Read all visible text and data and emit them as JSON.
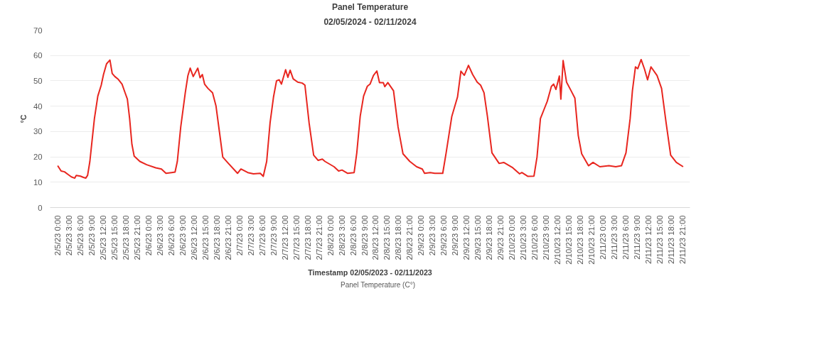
{
  "chart_data": {
    "type": "line",
    "title": "Panel Temperature",
    "subtitle": "02/05/2024 - 02/11/2024",
    "xlabel": "Timestamp 02/05/2023 - 02/11/2023",
    "ylabel": "°C",
    "x": [
      "2023-02-05T00:00",
      "2023-02-05T00:54",
      "2023-02-05T01:48",
      "2023-02-05T02:42",
      "2023-02-05T03:36",
      "2023-02-05T04:30",
      "2023-02-05T04:54",
      "2023-02-05T06:00",
      "2023-02-05T06:48",
      "2023-02-05T07:24",
      "2023-02-05T07:54",
      "2023-02-05T08:30",
      "2023-02-05T09:06",
      "2023-02-05T09:42",
      "2023-02-05T10:36",
      "2023-02-05T11:30",
      "2023-02-05T12:06",
      "2023-02-05T12:54",
      "2023-02-05T13:48",
      "2023-02-05T14:24",
      "2023-02-05T15:06",
      "2023-02-05T16:00",
      "2023-02-05T17:00",
      "2023-02-05T17:48",
      "2023-02-05T18:24",
      "2023-02-05T19:00",
      "2023-02-05T19:36",
      "2023-02-05T20:12",
      "2023-02-05T21:42",
      "2023-02-05T23:30",
      "2023-02-06T01:54",
      "2023-02-06T03:24",
      "2023-02-06T04:36",
      "2023-02-06T06:06",
      "2023-02-06T07:00",
      "2023-02-06T07:36",
      "2023-02-06T08:30",
      "2023-02-06T09:42",
      "2023-02-06T10:24",
      "2023-02-06T11:00",
      "2023-02-06T11:48",
      "2023-02-06T13:00",
      "2023-02-06T13:36",
      "2023-02-06T14:12",
      "2023-02-06T14:48",
      "2023-02-06T15:42",
      "2023-02-06T16:54",
      "2023-02-06T17:48",
      "2023-02-06T18:42",
      "2023-02-06T19:36",
      "2023-02-06T21:06",
      "2023-02-06T23:30",
      "2023-02-07T00:24",
      "2023-02-07T02:12",
      "2023-02-07T03:42",
      "2023-02-07T05:30",
      "2023-02-07T06:18",
      "2023-02-07T07:12",
      "2023-02-07T08:06",
      "2023-02-07T09:00",
      "2023-02-07T09:48",
      "2023-02-07T10:30",
      "2023-02-07T11:06",
      "2023-02-07T12:12",
      "2023-02-07T12:48",
      "2023-02-07T13:24",
      "2023-02-07T14:12",
      "2023-02-07T15:24",
      "2023-02-07T16:36",
      "2023-02-07T17:18",
      "2023-02-07T18:24",
      "2023-02-07T19:36",
      "2023-02-07T20:48",
      "2023-02-07T21:54",
      "2023-02-07T22:36",
      "2023-02-08T01:00",
      "2023-02-08T02:12",
      "2023-02-08T03:06",
      "2023-02-08T04:36",
      "2023-02-08T06:18",
      "2023-02-08T07:00",
      "2023-02-08T07:54",
      "2023-02-08T08:48",
      "2023-02-08T09:48",
      "2023-02-08T10:30",
      "2023-02-08T11:24",
      "2023-02-08T12:18",
      "2023-02-08T13:00",
      "2023-02-08T14:00",
      "2023-02-08T14:24",
      "2023-02-08T15:12",
      "2023-02-08T16:42",
      "2023-02-08T17:54",
      "2023-02-08T19:12",
      "2023-02-08T21:00",
      "2023-02-08T22:48",
      "2023-02-09T00:18",
      "2023-02-09T00:54",
      "2023-02-09T02:24",
      "2023-02-09T03:36",
      "2023-02-09T05:42",
      "2023-02-09T06:36",
      "2023-02-09T08:06",
      "2023-02-09T09:36",
      "2023-02-09T10:30",
      "2023-02-09T11:24",
      "2023-02-09T12:30",
      "2023-02-09T13:36",
      "2023-02-09T14:48",
      "2023-02-09T15:42",
      "2023-02-09T16:36",
      "2023-02-09T17:30",
      "2023-02-09T18:42",
      "2023-02-09T20:36",
      "2023-02-09T21:48",
      "2023-02-10T00:12",
      "2023-02-10T02:00",
      "2023-02-10T02:36",
      "2023-02-10T04:12",
      "2023-02-10T05:48",
      "2023-02-10T06:36",
      "2023-02-10T07:30",
      "2023-02-10T08:24",
      "2023-02-10T09:18",
      "2023-02-10T10:24",
      "2023-02-10T11:00",
      "2023-02-10T11:36",
      "2023-02-10T12:30",
      "2023-02-10T12:54",
      "2023-02-10T13:30",
      "2023-02-10T14:24",
      "2023-02-10T15:36",
      "2023-02-10T16:36",
      "2023-02-10T17:30",
      "2023-02-10T18:24",
      "2023-02-10T20:12",
      "2023-02-10T21:24",
      "2023-02-10T23:12",
      "2023-02-11T01:36",
      "2023-02-11T03:24",
      "2023-02-11T04:54",
      "2023-02-11T06:06",
      "2023-02-11T07:12",
      "2023-02-11T07:48",
      "2023-02-11T08:36",
      "2023-02-11T09:12",
      "2023-02-11T10:06",
      "2023-02-11T11:00",
      "2023-02-11T11:48",
      "2023-02-11T12:42",
      "2023-02-11T14:18",
      "2023-02-11T15:30",
      "2023-02-11T16:42",
      "2023-02-11T17:54",
      "2023-02-11T19:24",
      "2023-02-11T21:12"
    ],
    "series": [
      {
        "name": "Panel Temperature (C°)",
        "color": "#e8261f",
        "values": [
          16.5,
          14.4,
          14.1,
          13.1,
          12.1,
          11.6,
          12.7,
          12.4,
          11.9,
          11.6,
          12.7,
          18.2,
          26.7,
          35.1,
          44,
          48.3,
          52.5,
          56.7,
          58.2,
          52.9,
          51.7,
          50.6,
          48.7,
          45.3,
          42.8,
          35.1,
          25,
          20.3,
          18.2,
          16.9,
          15.7,
          15.2,
          13.5,
          13.8,
          14,
          18.2,
          31.8,
          45.3,
          52.1,
          55,
          51.7,
          55,
          51.2,
          52.5,
          48.7,
          47,
          45.3,
          40.2,
          30.1,
          19.9,
          17.4,
          13.5,
          15.2,
          13.8,
          13.3,
          13.5,
          12.3,
          18.2,
          33.5,
          43.6,
          50,
          50.4,
          48.7,
          54.4,
          51.4,
          54.2,
          50.8,
          49.5,
          49.1,
          48.3,
          33.4,
          20.7,
          18.6,
          19.1,
          18.2,
          16.1,
          14.4,
          14.8,
          13.5,
          13.8,
          21.6,
          36,
          44,
          47.9,
          48.7,
          52.1,
          53.9,
          49.3,
          49.3,
          47.7,
          49.3,
          46.1,
          31.8,
          21.2,
          18.2,
          16.1,
          15.2,
          13.5,
          13.8,
          13.5,
          13.5,
          21.6,
          36,
          43.6,
          53.8,
          52.2,
          56.1,
          52.5,
          49.5,
          48.3,
          45.3,
          36,
          21.6,
          17.4,
          17.8,
          15.7,
          13.3,
          13.8,
          12.3,
          12.4,
          19.9,
          35.1,
          38.5,
          41.9,
          47.8,
          48.7,
          46.6,
          51.9,
          42.8,
          58,
          49.5,
          46.1,
          43.2,
          28.4,
          21.2,
          16.5,
          17.8,
          16.1,
          16.5,
          16.1,
          16.5,
          21.6,
          35.1,
          46.1,
          55.5,
          54.8,
          58.4,
          54.6,
          50.4,
          55.5,
          52.1,
          47,
          33.4,
          20.7,
          17.8,
          16.1
        ]
      }
    ],
    "xlim": [
      "2023-02-04T22:00",
      "2023-02-11T23:00"
    ],
    "xticks": [
      {
        "value": "2023-02-05T00:00",
        "label": "2/5/23 0:00"
      },
      {
        "value": "2023-02-05T03:00",
        "label": "2/5/23 3:00"
      },
      {
        "value": "2023-02-05T06:00",
        "label": "2/5/23 6:00"
      },
      {
        "value": "2023-02-05T09:00",
        "label": "2/5/23 9:00"
      },
      {
        "value": "2023-02-05T12:00",
        "label": "2/5/23 12:00"
      },
      {
        "value": "2023-02-05T15:00",
        "label": "2/5/23 15:00"
      },
      {
        "value": "2023-02-05T18:00",
        "label": "2/5/23 18:00"
      },
      {
        "value": "2023-02-05T21:00",
        "label": "2/5/23 21:00"
      },
      {
        "value": "2023-02-06T00:00",
        "label": "2/6/23 0:00"
      },
      {
        "value": "2023-02-06T03:00",
        "label": "2/6/23 3:00"
      },
      {
        "value": "2023-02-06T06:00",
        "label": "2/6/23 6:00"
      },
      {
        "value": "2023-02-06T09:00",
        "label": "2/6/23 9:00"
      },
      {
        "value": "2023-02-06T12:00",
        "label": "2/6/23 12:00"
      },
      {
        "value": "2023-02-06T15:00",
        "label": "2/6/23 15:00"
      },
      {
        "value": "2023-02-06T18:00",
        "label": "2/6/23 18:00"
      },
      {
        "value": "2023-02-06T21:00",
        "label": "2/6/23 21:00"
      },
      {
        "value": "2023-02-07T00:00",
        "label": "2/7/23 0:00"
      },
      {
        "value": "2023-02-07T03:00",
        "label": "2/7/23 3:00"
      },
      {
        "value": "2023-02-07T06:00",
        "label": "2/7/23 6:00"
      },
      {
        "value": "2023-02-07T09:00",
        "label": "2/7/23 9:00"
      },
      {
        "value": "2023-02-07T12:00",
        "label": "2/7/23 12:00"
      },
      {
        "value": "2023-02-07T15:00",
        "label": "2/7/23 15:00"
      },
      {
        "value": "2023-02-07T18:00",
        "label": "2/7/23 18:00"
      },
      {
        "value": "2023-02-07T21:00",
        "label": "2/7/23 21:00"
      },
      {
        "value": "2023-02-08T00:00",
        "label": "2/8/23 0:00"
      },
      {
        "value": "2023-02-08T03:00",
        "label": "2/8/23 3:00"
      },
      {
        "value": "2023-02-08T06:00",
        "label": "2/8/23 6:00"
      },
      {
        "value": "2023-02-08T09:00",
        "label": "2/8/23 9:00"
      },
      {
        "value": "2023-02-08T12:00",
        "label": "2/8/23 12:00"
      },
      {
        "value": "2023-02-08T15:00",
        "label": "2/8/23 15:00"
      },
      {
        "value": "2023-02-08T18:00",
        "label": "2/8/23 18:00"
      },
      {
        "value": "2023-02-08T21:00",
        "label": "2/8/23 21:00"
      },
      {
        "value": "2023-02-09T00:00",
        "label": "2/9/23 0:00"
      },
      {
        "value": "2023-02-09T03:00",
        "label": "2/9/23 3:00"
      },
      {
        "value": "2023-02-09T06:00",
        "label": "2/9/23 6:00"
      },
      {
        "value": "2023-02-09T09:00",
        "label": "2/9/23 9:00"
      },
      {
        "value": "2023-02-09T12:00",
        "label": "2/9/23 12:00"
      },
      {
        "value": "2023-02-09T15:00",
        "label": "2/9/23 15:00"
      },
      {
        "value": "2023-02-09T18:00",
        "label": "2/9/23 18:00"
      },
      {
        "value": "2023-02-09T21:00",
        "label": "2/9/23 21:00"
      },
      {
        "value": "2023-02-10T00:00",
        "label": "2/10/23 0:00"
      },
      {
        "value": "2023-02-10T03:00",
        "label": "2/10/23 3:00"
      },
      {
        "value": "2023-02-10T06:00",
        "label": "2/10/23 6:00"
      },
      {
        "value": "2023-02-10T09:00",
        "label": "2/10/23 9:00"
      },
      {
        "value": "2023-02-10T12:00",
        "label": "2/10/23 12:00"
      },
      {
        "value": "2023-02-10T15:00",
        "label": "2/10/23 15:00"
      },
      {
        "value": "2023-02-10T18:00",
        "label": "2/10/23 18:00"
      },
      {
        "value": "2023-02-10T21:00",
        "label": "2/10/23 21:00"
      },
      {
        "value": "2023-02-11T00:00",
        "label": "2/11/23 0:00"
      },
      {
        "value": "2023-02-11T03:00",
        "label": "2/11/23 3:00"
      },
      {
        "value": "2023-02-11T06:00",
        "label": "2/11/23 6:00"
      },
      {
        "value": "2023-02-11T09:00",
        "label": "2/11/23 9:00"
      },
      {
        "value": "2023-02-11T12:00",
        "label": "2/11/23 12:00"
      },
      {
        "value": "2023-02-11T15:00",
        "label": "2/11/23 15:00"
      },
      {
        "value": "2023-02-11T18:00",
        "label": "2/11/23 18:00"
      },
      {
        "value": "2023-02-11T21:00",
        "label": "2/11/23 21:00"
      }
    ],
    "ylim": [
      0,
      70
    ],
    "yticks": [
      0,
      10,
      20,
      30,
      40,
      50,
      60,
      70
    ],
    "grid": "y",
    "legend": "bottom",
    "marker": "none",
    "line_style": "solid"
  }
}
